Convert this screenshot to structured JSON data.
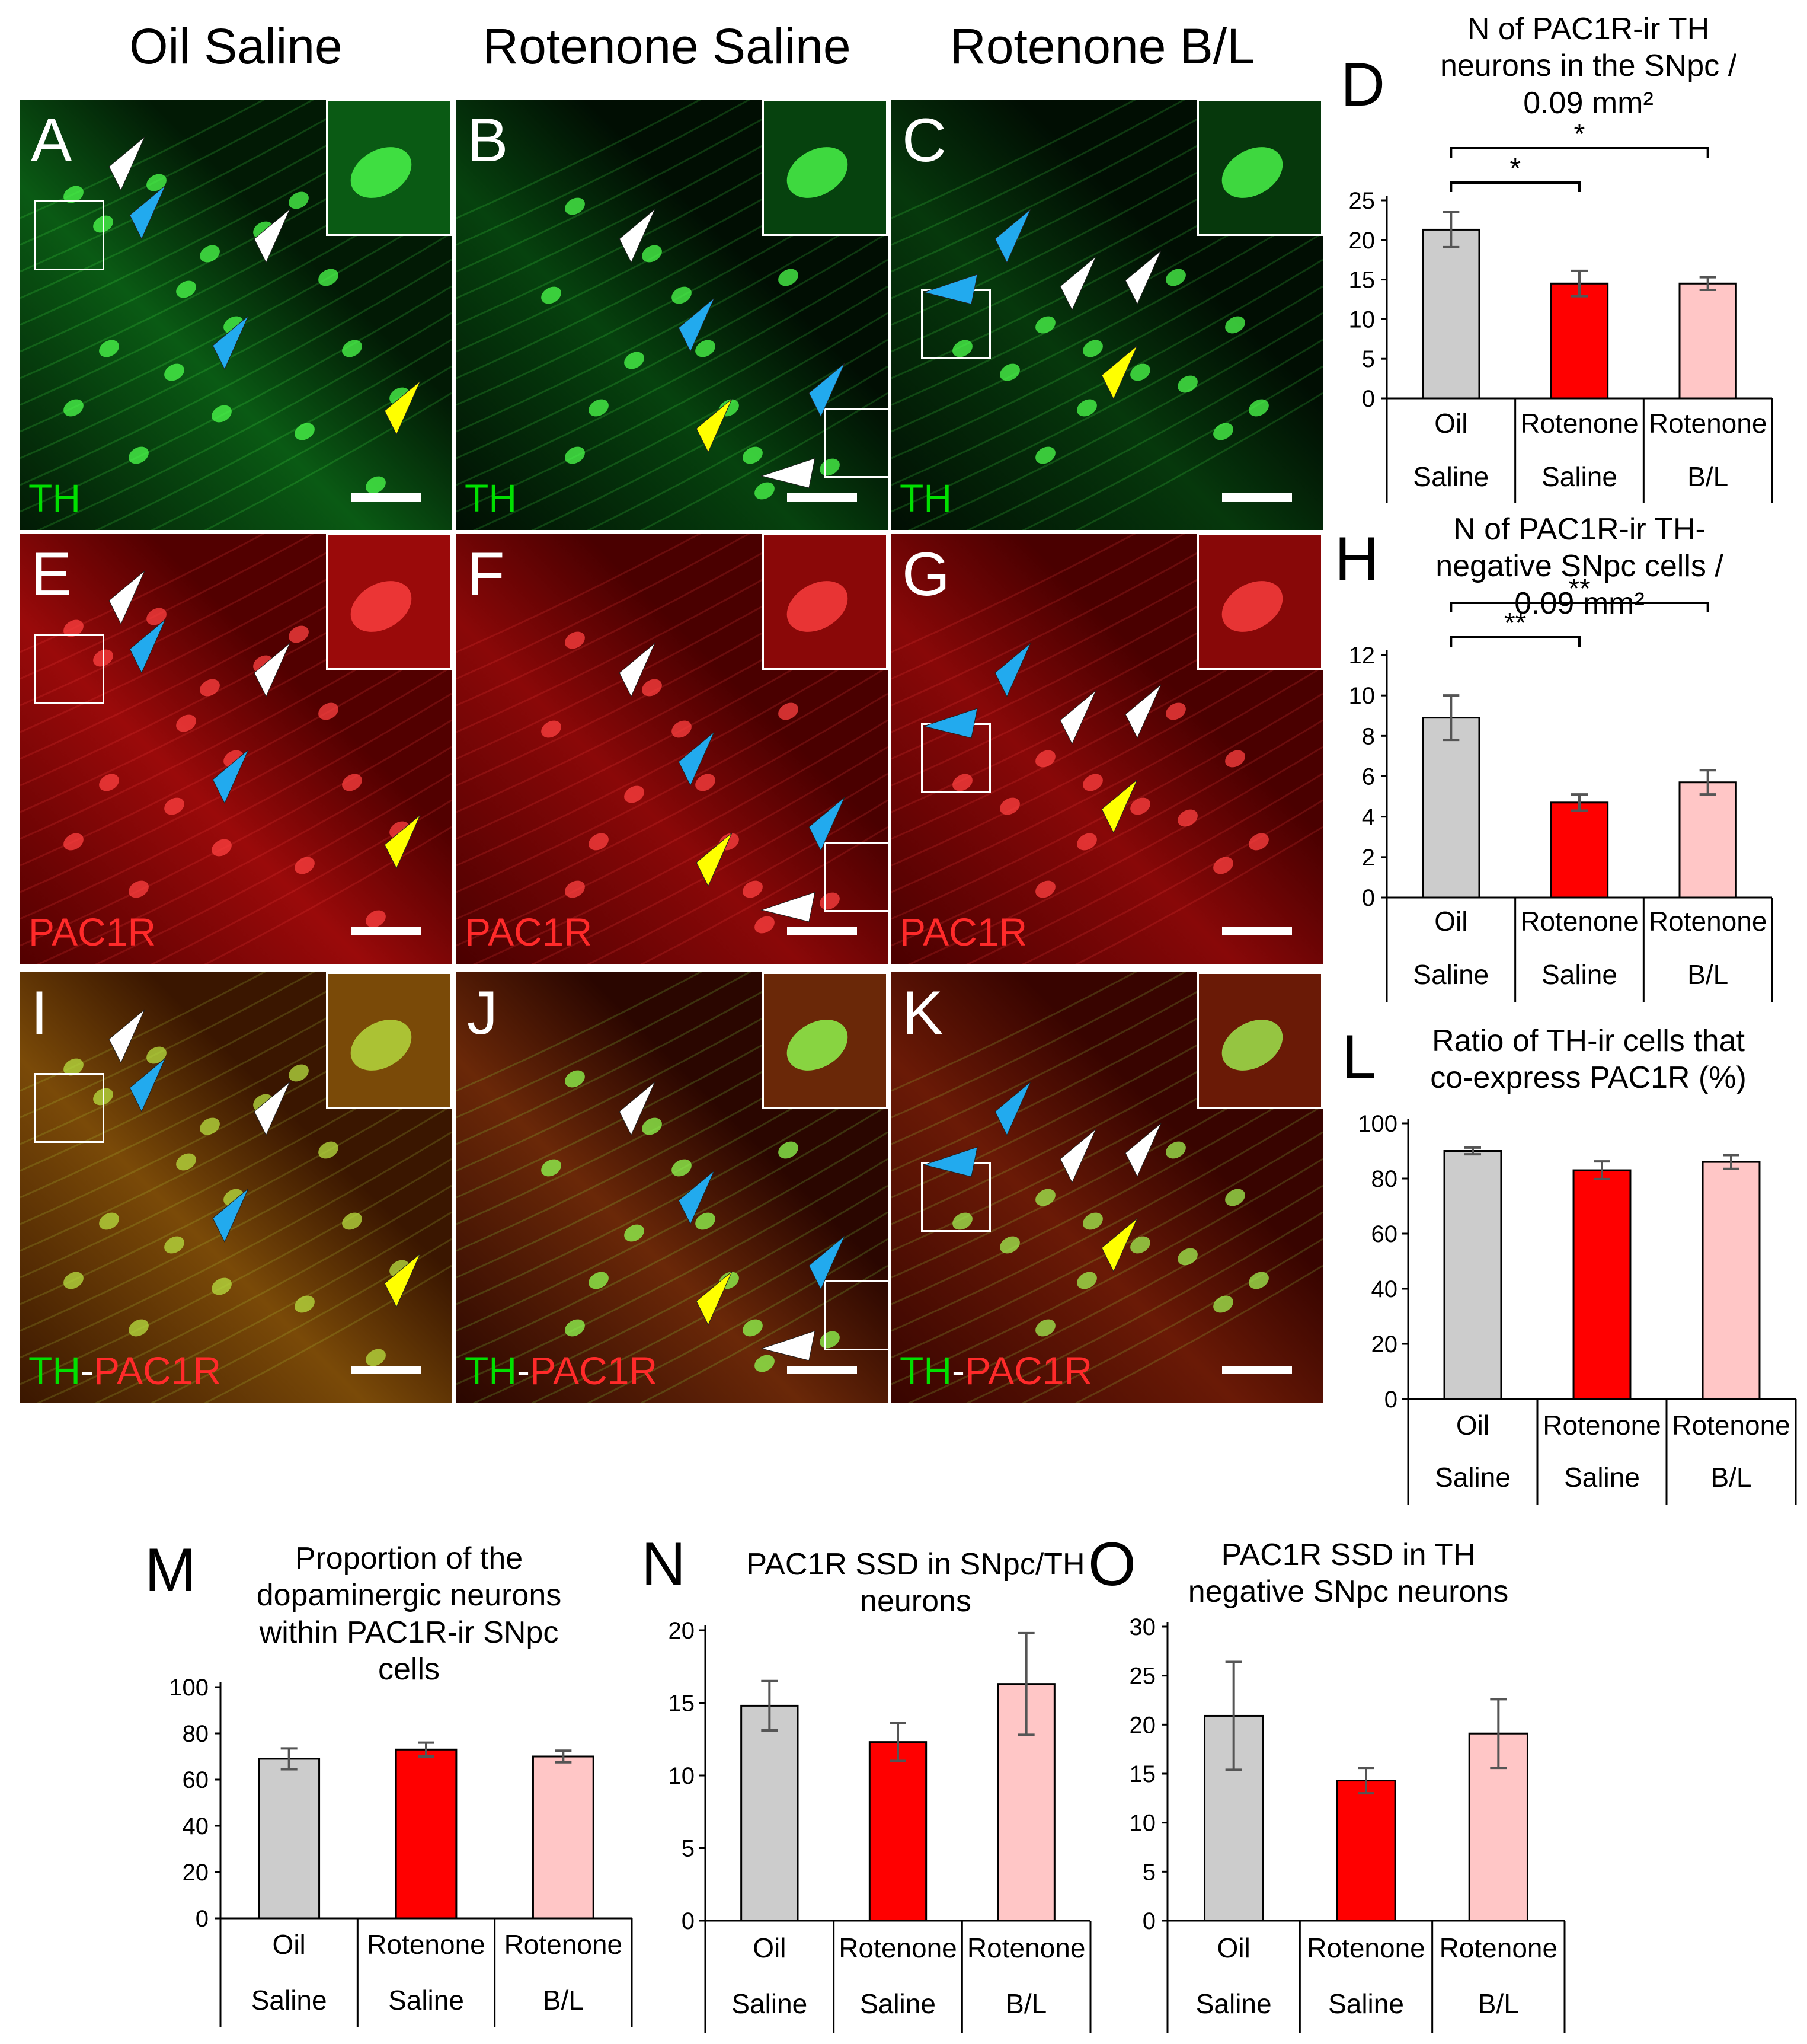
{
  "column_titles": [
    "Oil Saline",
    "Rotenone Saline",
    "Rotenone B/L"
  ],
  "image_panels": [
    {
      "letter": "A",
      "channel": [
        {
          "text": "TH",
          "color": "#00e000"
        }
      ],
      "bg": [
        "#021a05",
        "#0a5a14"
      ],
      "cells": "#4cff4c"
    },
    {
      "letter": "B",
      "channel": [
        {
          "text": "TH",
          "color": "#00e000"
        }
      ],
      "bg": [
        "#010e03",
        "#06420e"
      ],
      "cells": "#4cff4c"
    },
    {
      "letter": "C",
      "channel": [
        {
          "text": "TH",
          "color": "#00e000"
        }
      ],
      "bg": [
        "#010e03",
        "#06380c"
      ],
      "cells": "#4cff4c"
    },
    {
      "letter": "E",
      "channel": [
        {
          "text": "PAC1R",
          "color": "#ff2a2a"
        }
      ],
      "bg": [
        "#520000",
        "#9a0a0a"
      ],
      "cells": "#ff4040"
    },
    {
      "letter": "F",
      "channel": [
        {
          "text": "PAC1R",
          "color": "#ff2a2a"
        }
      ],
      "bg": [
        "#4a0000",
        "#8a0808"
      ],
      "cells": "#ff4040"
    },
    {
      "letter": "G",
      "channel": [
        {
          "text": "PAC1R",
          "color": "#ff2a2a"
        }
      ],
      "bg": [
        "#4a0000",
        "#880808"
      ],
      "cells": "#ff4040"
    },
    {
      "letter": "I",
      "channel": [
        {
          "text": "TH",
          "color": "#00e000"
        },
        {
          "text": "-",
          "color": "#ffffff"
        },
        {
          "text": "PAC1R",
          "color": "#ff2a2a"
        }
      ],
      "bg": [
        "#3a1600",
        "#7a4a08"
      ],
      "cells": "#b8e040"
    },
    {
      "letter": "J",
      "channel": [
        {
          "text": "TH",
          "color": "#00e000"
        },
        {
          "text": "-",
          "color": "#ffffff"
        },
        {
          "text": "PAC1R",
          "color": "#ff2a2a"
        }
      ],
      "bg": [
        "#2a0600",
        "#6a2808"
      ],
      "cells": "#90ff50"
    },
    {
      "letter": "K",
      "channel": [
        {
          "text": "TH",
          "color": "#00e000"
        },
        {
          "text": "-",
          "color": "#ffffff"
        },
        {
          "text": "PAC1R",
          "color": "#ff2a2a"
        }
      ],
      "bg": [
        "#380400",
        "#6a1a06"
      ],
      "cells": "#a0f050"
    }
  ],
  "chart_data": [
    {
      "id": "D",
      "letter": "D",
      "type": "bar",
      "title": [
        "N of PAC1R-ir TH",
        "neurons in the SNpc /",
        "0.09 mm²"
      ],
      "categories": [
        [
          "Oil",
          "Saline"
        ],
        [
          "Rotenone",
          "Saline"
        ],
        [
          "Rotenone",
          "B/L"
        ]
      ],
      "values": [
        21.3,
        14.5,
        14.5
      ],
      "errors": [
        2.2,
        1.6,
        0.8
      ],
      "colors": [
        "#cccccc",
        "#ff0000",
        "#ffc6c6"
      ],
      "yticks": [
        0,
        5,
        10,
        15,
        20,
        25
      ],
      "ylim": [
        0,
        25
      ],
      "significance": [
        {
          "from": 0,
          "to": 1,
          "label": "*"
        },
        {
          "from": 0,
          "to": 2,
          "label": "*"
        }
      ]
    },
    {
      "id": "H",
      "letter": "H",
      "type": "bar",
      "title": [
        "N of PAC1R-ir TH-",
        "negative SNpc cells /",
        "0.09 mm²"
      ],
      "categories": [
        [
          "Oil",
          "Saline"
        ],
        [
          "Rotenone",
          "Saline"
        ],
        [
          "Rotenone",
          "B/L"
        ]
      ],
      "values": [
        8.9,
        4.7,
        5.7
      ],
      "errors": [
        1.1,
        0.4,
        0.6
      ],
      "colors": [
        "#cccccc",
        "#ff0000",
        "#ffc6c6"
      ],
      "yticks": [
        0,
        2,
        4,
        6,
        8,
        10,
        12
      ],
      "ylim": [
        0,
        12
      ],
      "significance": [
        {
          "from": 0,
          "to": 1,
          "label": "**"
        },
        {
          "from": 0,
          "to": 2,
          "label": "**"
        }
      ]
    },
    {
      "id": "L",
      "letter": "L",
      "type": "bar",
      "title": [
        "Ratio of TH-ir cells that",
        "co-express PAC1R (%)"
      ],
      "categories": [
        [
          "Oil",
          "Saline"
        ],
        [
          "Rotenone",
          "Saline"
        ],
        [
          "Rotenone",
          "B/L"
        ]
      ],
      "values": [
        90,
        83,
        86
      ],
      "errors": [
        1.2,
        3.2,
        2.5
      ],
      "colors": [
        "#cccccc",
        "#ff0000",
        "#ffc6c6"
      ],
      "yticks": [
        0,
        20,
        40,
        60,
        80,
        100
      ],
      "ylim": [
        0,
        100
      ],
      "significance": []
    },
    {
      "id": "M",
      "letter": "M",
      "type": "bar",
      "title": [
        "Proportion of the",
        "dopaminergic neurons",
        "within PAC1R-ir SNpc",
        "cells"
      ],
      "categories": [
        [
          "Oil",
          "Saline"
        ],
        [
          "Rotenone",
          "Saline"
        ],
        [
          "Rotenone",
          "B/L"
        ]
      ],
      "values": [
        69,
        73,
        70
      ],
      "errors": [
        4.5,
        3,
        2.5
      ],
      "colors": [
        "#cccccc",
        "#ff0000",
        "#ffc6c6"
      ],
      "yticks": [
        0,
        20,
        40,
        60,
        80,
        100
      ],
      "ylim": [
        0,
        100
      ],
      "significance": []
    },
    {
      "id": "N",
      "letter": "N",
      "type": "bar",
      "title": [
        "PAC1R SSD in SNpc/TH",
        "neurons"
      ],
      "categories": [
        [
          "Oil",
          "Saline"
        ],
        [
          "Rotenone",
          "Saline"
        ],
        [
          "Rotenone",
          "B/L"
        ]
      ],
      "values": [
        14.8,
        12.3,
        16.3
      ],
      "errors": [
        1.7,
        1.3,
        3.5
      ],
      "colors": [
        "#cccccc",
        "#ff0000",
        "#ffc6c6"
      ],
      "yticks": [
        0,
        5,
        10,
        15,
        20
      ],
      "ylim": [
        0,
        20
      ],
      "significance": []
    },
    {
      "id": "O",
      "letter": "O",
      "type": "bar",
      "title": [
        "PAC1R SSD in TH",
        "negative SNpc neurons"
      ],
      "categories": [
        [
          "Oil",
          "Saline"
        ],
        [
          "Rotenone",
          "Saline"
        ],
        [
          "Rotenone",
          "B/L"
        ]
      ],
      "values": [
        20.9,
        14.3,
        19.1
      ],
      "errors": [
        5.5,
        1.3,
        3.5
      ],
      "colors": [
        "#cccccc",
        "#ff0000",
        "#ffc6c6"
      ],
      "yticks": [
        0,
        5,
        10,
        15,
        20,
        25,
        30
      ],
      "ylim": [
        0,
        30
      ],
      "significance": []
    }
  ]
}
